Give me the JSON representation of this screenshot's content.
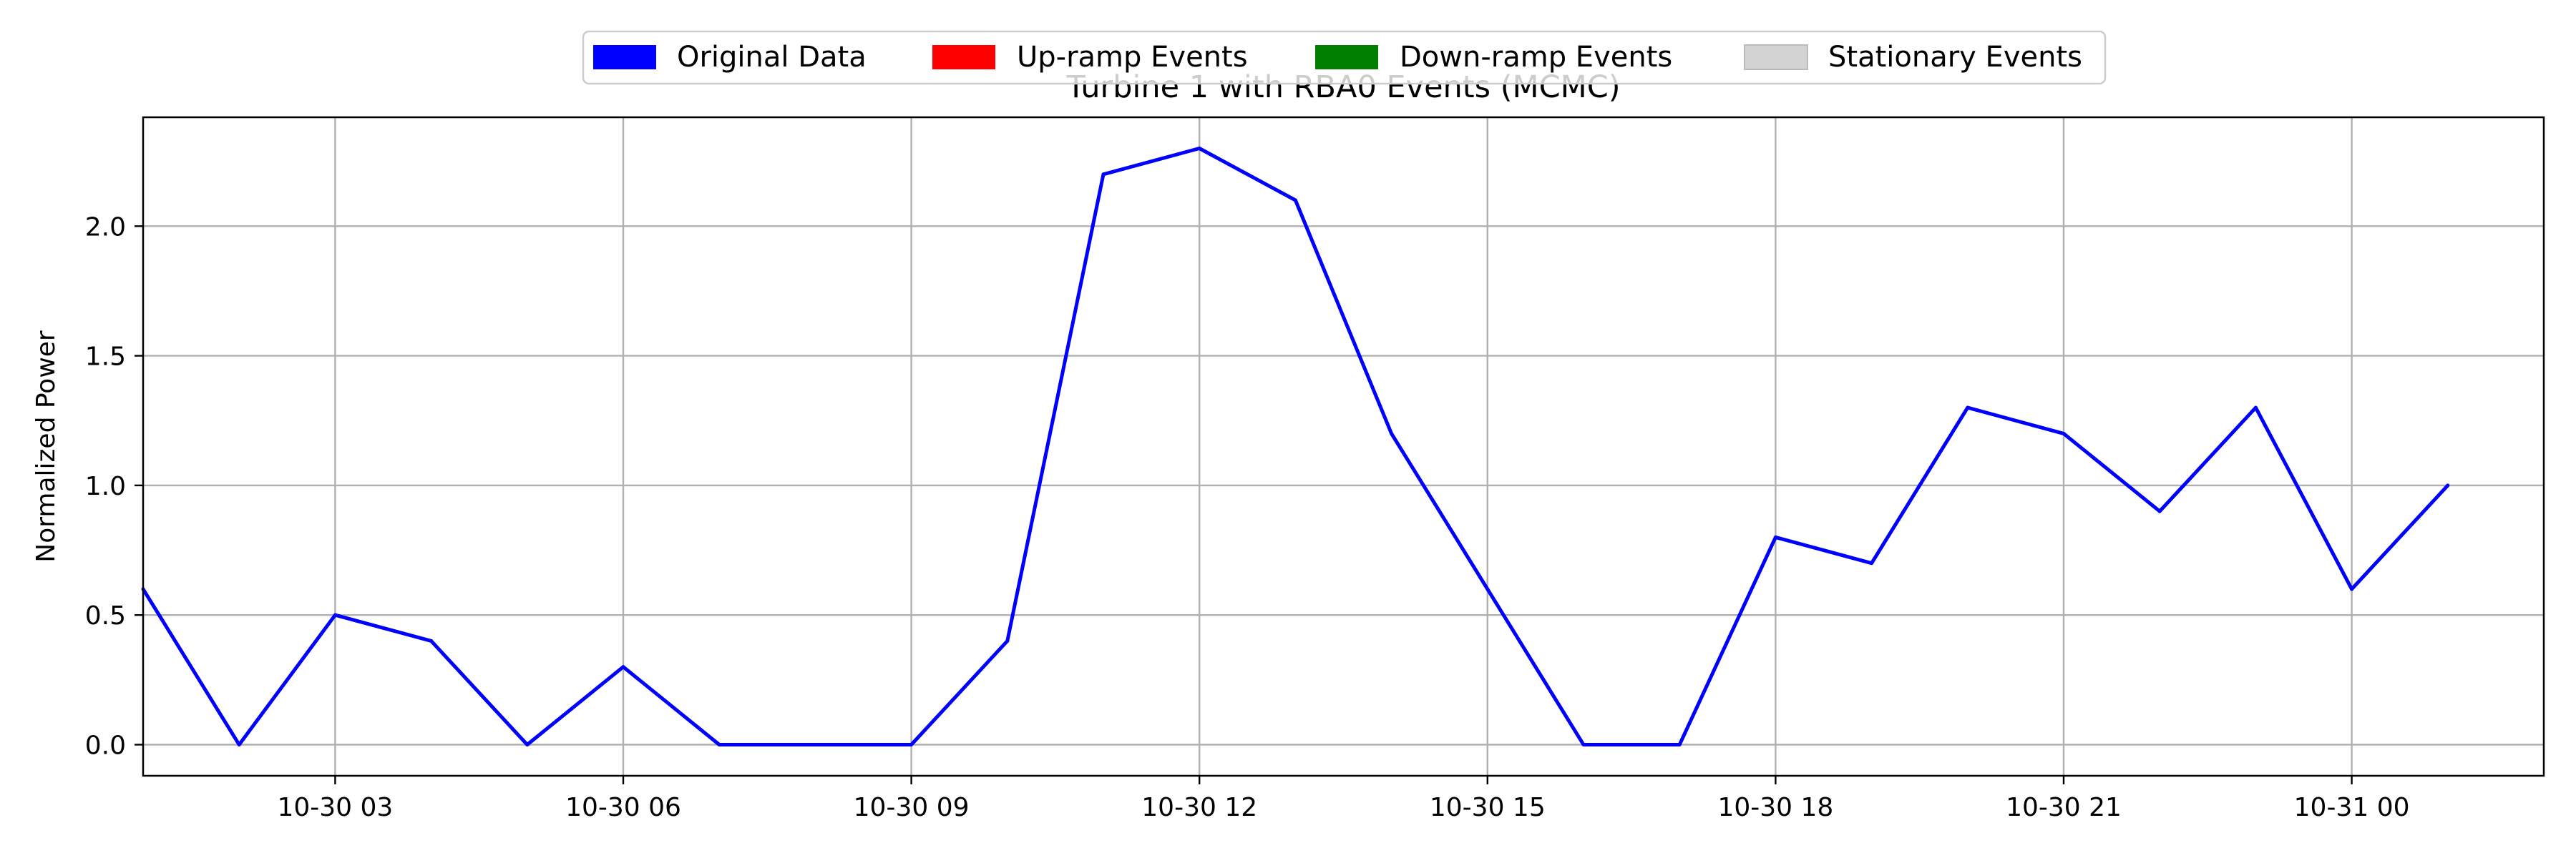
{
  "chart_data": {
    "type": "line",
    "title": "Turbine 1 with RBA0 Events (MCMC)",
    "xlabel": "",
    "ylabel": "Normalized Power",
    "xlim": [
      "2020-10-30T01:00",
      "2020-10-31T02:00"
    ],
    "ylim": [
      -0.12,
      2.42
    ],
    "grid": true,
    "legend_placement": "top-center",
    "x_ticks": [
      {
        "value": "2020-10-30T03:00",
        "label": "10-30 03"
      },
      {
        "value": "2020-10-30T06:00",
        "label": "10-30 06"
      },
      {
        "value": "2020-10-30T09:00",
        "label": "10-30 09"
      },
      {
        "value": "2020-10-30T12:00",
        "label": "10-30 12"
      },
      {
        "value": "2020-10-30T15:00",
        "label": "10-30 15"
      },
      {
        "value": "2020-10-30T18:00",
        "label": "10-30 18"
      },
      {
        "value": "2020-10-30T21:00",
        "label": "10-30 21"
      },
      {
        "value": "2020-10-31T00:00",
        "label": "10-31 00"
      }
    ],
    "y_ticks": [
      {
        "value": 0.0,
        "label": "0.0"
      },
      {
        "value": 0.5,
        "label": "0.5"
      },
      {
        "value": 1.0,
        "label": "1.0"
      },
      {
        "value": 1.5,
        "label": "1.5"
      },
      {
        "value": 2.0,
        "label": "2.0"
      }
    ],
    "legend": [
      {
        "label": "Original Data",
        "color": "#0000ff"
      },
      {
        "label": "Up-ramp Events",
        "color": "#ff0000"
      },
      {
        "label": "Down-ramp Events",
        "color": "#008000"
      },
      {
        "label": "Stationary Events",
        "color": "#d3d3d3"
      }
    ],
    "series": [
      {
        "name": "Original Data",
        "color": "#0000ff",
        "points": [
          {
            "x": "2020-10-30T01:00",
            "y": 0.6
          },
          {
            "x": "2020-10-30T02:00",
            "y": 0.0
          },
          {
            "x": "2020-10-30T03:00",
            "y": 0.5
          },
          {
            "x": "2020-10-30T04:00",
            "y": 0.4
          },
          {
            "x": "2020-10-30T05:00",
            "y": 0.0
          },
          {
            "x": "2020-10-30T06:00",
            "y": 0.3
          },
          {
            "x": "2020-10-30T07:00",
            "y": 0.0
          },
          {
            "x": "2020-10-30T08:00",
            "y": 0.0
          },
          {
            "x": "2020-10-30T09:00",
            "y": 0.0
          },
          {
            "x": "2020-10-30T10:00",
            "y": 0.4
          },
          {
            "x": "2020-10-30T11:00",
            "y": 2.2
          },
          {
            "x": "2020-10-30T12:00",
            "y": 2.3
          },
          {
            "x": "2020-10-30T13:00",
            "y": 2.1
          },
          {
            "x": "2020-10-30T14:00",
            "y": 1.2
          },
          {
            "x": "2020-10-30T15:00",
            "y": 0.6
          },
          {
            "x": "2020-10-30T16:00",
            "y": 0.0
          },
          {
            "x": "2020-10-30T17:00",
            "y": 0.0
          },
          {
            "x": "2020-10-30T18:00",
            "y": 0.8
          },
          {
            "x": "2020-10-30T19:00",
            "y": 0.7
          },
          {
            "x": "2020-10-30T20:00",
            "y": 1.3
          },
          {
            "x": "2020-10-30T21:00",
            "y": 1.2
          },
          {
            "x": "2020-10-30T22:00",
            "y": 0.9
          },
          {
            "x": "2020-10-30T23:00",
            "y": 1.3
          },
          {
            "x": "2020-10-31T00:00",
            "y": 0.6
          },
          {
            "x": "2020-10-31T01:00",
            "y": 1.0
          }
        ]
      }
    ]
  }
}
